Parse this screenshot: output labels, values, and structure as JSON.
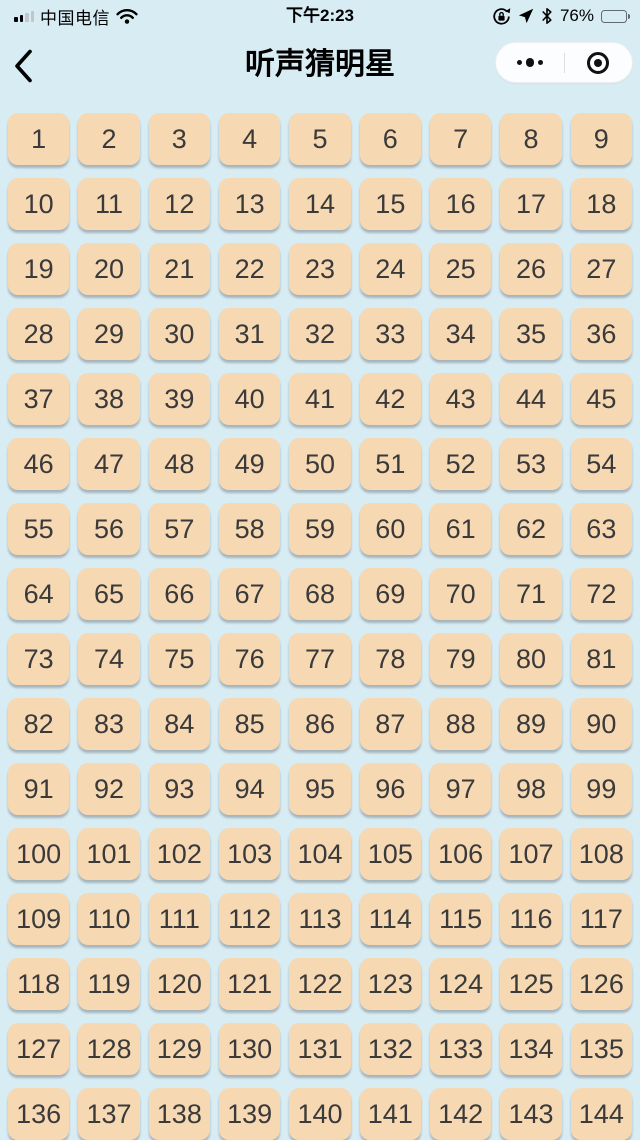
{
  "status_bar": {
    "carrier": "中国电信",
    "time": "下午2:23",
    "battery_percent": "76%",
    "battery_level": 0.76,
    "signal_bars_total": 4,
    "signal_bars_filled": 2,
    "icons": [
      "cellular-signal",
      "wifi",
      "orientation-lock",
      "location-arrow",
      "bluetooth",
      "battery"
    ]
  },
  "nav": {
    "title": "听声猜明星",
    "capsule": {
      "more_icon": "three-dots",
      "exit_icon": "circle-dot"
    }
  },
  "grid": {
    "numbers": [
      1,
      2,
      3,
      4,
      5,
      6,
      7,
      8,
      9,
      10,
      11,
      12,
      13,
      14,
      15,
      16,
      17,
      18,
      19,
      20,
      21,
      22,
      23,
      24,
      25,
      26,
      27,
      28,
      29,
      30,
      31,
      32,
      33,
      34,
      35,
      36,
      37,
      38,
      39,
      40,
      41,
      42,
      43,
      44,
      45,
      46,
      47,
      48,
      49,
      50,
      51,
      52,
      53,
      54,
      55,
      56,
      57,
      58,
      59,
      60,
      61,
      62,
      63,
      64,
      65,
      66,
      67,
      68,
      69,
      70,
      71,
      72,
      73,
      74,
      75,
      76,
      77,
      78,
      79,
      80,
      81,
      82,
      83,
      84,
      85,
      86,
      87,
      88,
      89,
      90,
      91,
      92,
      93,
      94,
      95,
      96,
      97,
      98,
      99,
      100,
      101,
      102,
      103,
      104,
      105,
      106,
      107,
      108,
      109,
      110,
      111,
      112,
      113,
      114,
      115,
      116,
      117,
      118,
      119,
      120,
      121,
      122,
      123,
      124,
      125,
      126,
      127,
      128,
      129,
      130,
      131,
      132,
      133,
      134,
      135,
      136,
      137,
      138,
      139,
      140,
      141,
      142,
      143,
      144
    ]
  },
  "colors": {
    "background": "#D8ECF4",
    "tile_bg": "#F6D8B3",
    "tile_text": "#3A3A3A",
    "capsule_bg": "#FBFDFE",
    "status_text": "#000000"
  }
}
